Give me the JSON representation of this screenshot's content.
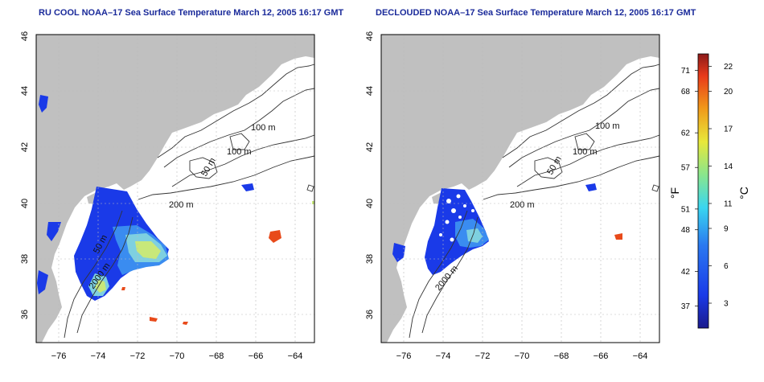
{
  "panels": [
    {
      "title": "RU COOL NOAA–17 Sea Surface Temperature March 12, 2005 16:17 GMT",
      "contour_labels": [
        "100 m",
        "100 m",
        "50 m",
        "200 m",
        "50 m",
        "2000 m"
      ]
    },
    {
      "title": "DECLOUDED NOAA–17 Sea Surface Temperature March 12, 2005 16:17 GMT",
      "contour_labels": [
        "100 m",
        "100 m",
        "50 m",
        "200 m",
        "2000 m"
      ]
    }
  ],
  "axes": {
    "x_ticks": [
      "−76",
      "−74",
      "−72",
      "−70",
      "−68",
      "−66",
      "−64"
    ],
    "y_ticks": [
      "36",
      "38",
      "40",
      "42",
      "44",
      "46"
    ],
    "lon_range": [
      -77,
      -63
    ],
    "lat_range": [
      35,
      46
    ]
  },
  "colorbar": {
    "f_label": "°F",
    "c_label": "°C",
    "f_ticks": [
      "37",
      "42",
      "48",
      "51",
      "57",
      "62",
      "68",
      "71"
    ],
    "c_ticks": [
      "3",
      "6",
      "9",
      "11",
      "14",
      "17",
      "20",
      "22"
    ],
    "c_range": [
      1,
      23
    ],
    "f_values": [
      37,
      42,
      48,
      51,
      57,
      62,
      68,
      71
    ],
    "c_values": [
      3,
      6,
      9,
      11,
      14,
      17,
      20,
      22
    ]
  },
  "colors": {
    "land": "#c0c0c0",
    "title": "#1a2a9a",
    "cold": "#1a3ae8",
    "cool": "#3a8cf0",
    "mild": "#7ed0e0",
    "warm": "#c8e87a",
    "hot": "#e84a1a"
  }
}
